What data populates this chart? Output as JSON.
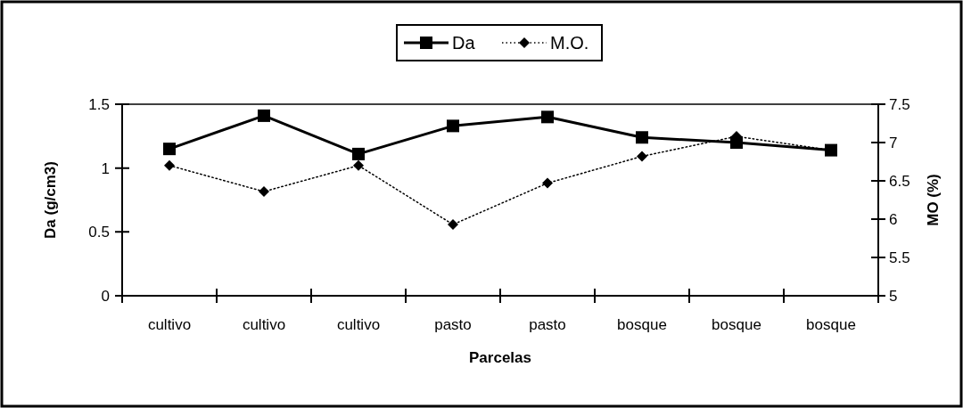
{
  "chart_data": {
    "type": "line",
    "xlabel": "Parcelas",
    "ylabel": "Da (g/cm3)",
    "y2label": "MO (%)",
    "categories": [
      "cultivo",
      "cultivo",
      "cultivo",
      "pasto",
      "pasto",
      "bosque",
      "bosque",
      "bosque"
    ],
    "series": [
      {
        "name": "Da",
        "color": "#000000",
        "marker": "square",
        "line_style": "solid",
        "values": [
          1.15,
          1.41,
          1.11,
          1.33,
          1.4,
          1.24,
          1.2,
          1.14
        ]
      },
      {
        "name": "M.O.",
        "color": "#000000",
        "marker": "diamond",
        "line_style": "dotted",
        "axis": "y2",
        "values": [
          6.7,
          6.36,
          6.7,
          5.93,
          6.47,
          6.82,
          7.08,
          6.9
        ]
      }
    ],
    "ylim": [
      0,
      1.5
    ],
    "yticks": [
      0,
      0.5,
      1,
      1.5
    ],
    "y2lim": [
      5,
      7.5
    ],
    "y2ticks": [
      5,
      5.5,
      6,
      6.5,
      7,
      7.5
    ],
    "grid": false,
    "legend": "top"
  }
}
